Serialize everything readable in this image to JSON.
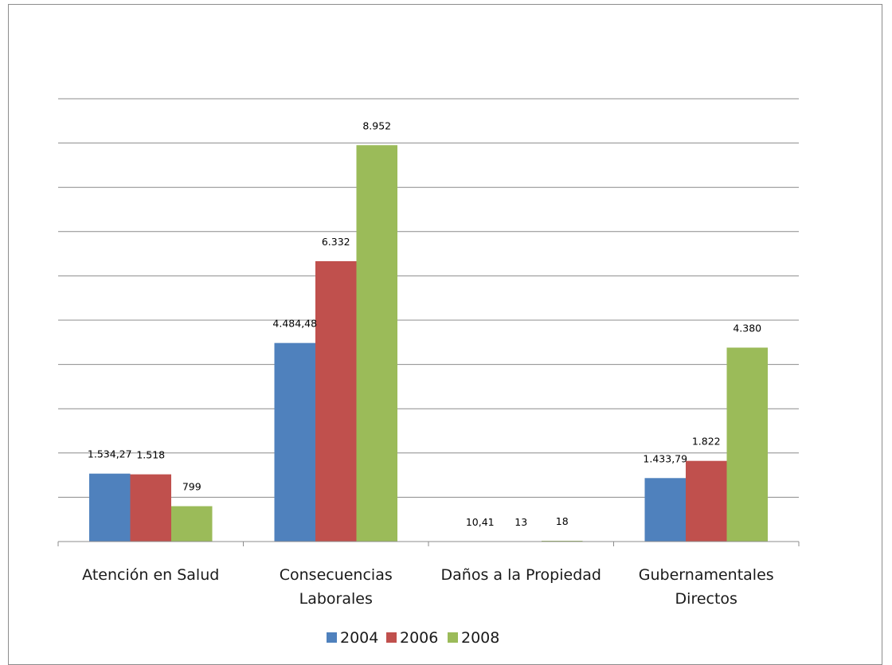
{
  "chart_data": {
    "type": "bar",
    "categories": [
      [
        "Atención en Salud"
      ],
      [
        "Consecuencias",
        "Laborales"
      ],
      [
        "Daños a la Propiedad"
      ],
      [
        "Gubernamentales",
        "Directos"
      ]
    ],
    "series": [
      {
        "name": "2004",
        "color": "#4f81bd",
        "values": [
          1534.27,
          4484.48,
          10.41,
          1433.79
        ],
        "labels": [
          "1.534,27",
          "4.484,48",
          "10,41",
          "1.433,79"
        ]
      },
      {
        "name": "2006",
        "color": "#c0504d",
        "values": [
          1518,
          6332,
          13,
          1822
        ],
        "labels": [
          "1.518",
          "6.332",
          "13",
          "1.822"
        ]
      },
      {
        "name": "2008",
        "color": "#9bbb59",
        "values": [
          799,
          8952,
          18,
          4380
        ],
        "labels": [
          "799",
          "8.952",
          "18",
          "4.380"
        ]
      }
    ],
    "ylim": [
      0,
      10000
    ],
    "grid": true,
    "legend": "bottom",
    "title": "",
    "xlabel": "",
    "ylabel": ""
  }
}
